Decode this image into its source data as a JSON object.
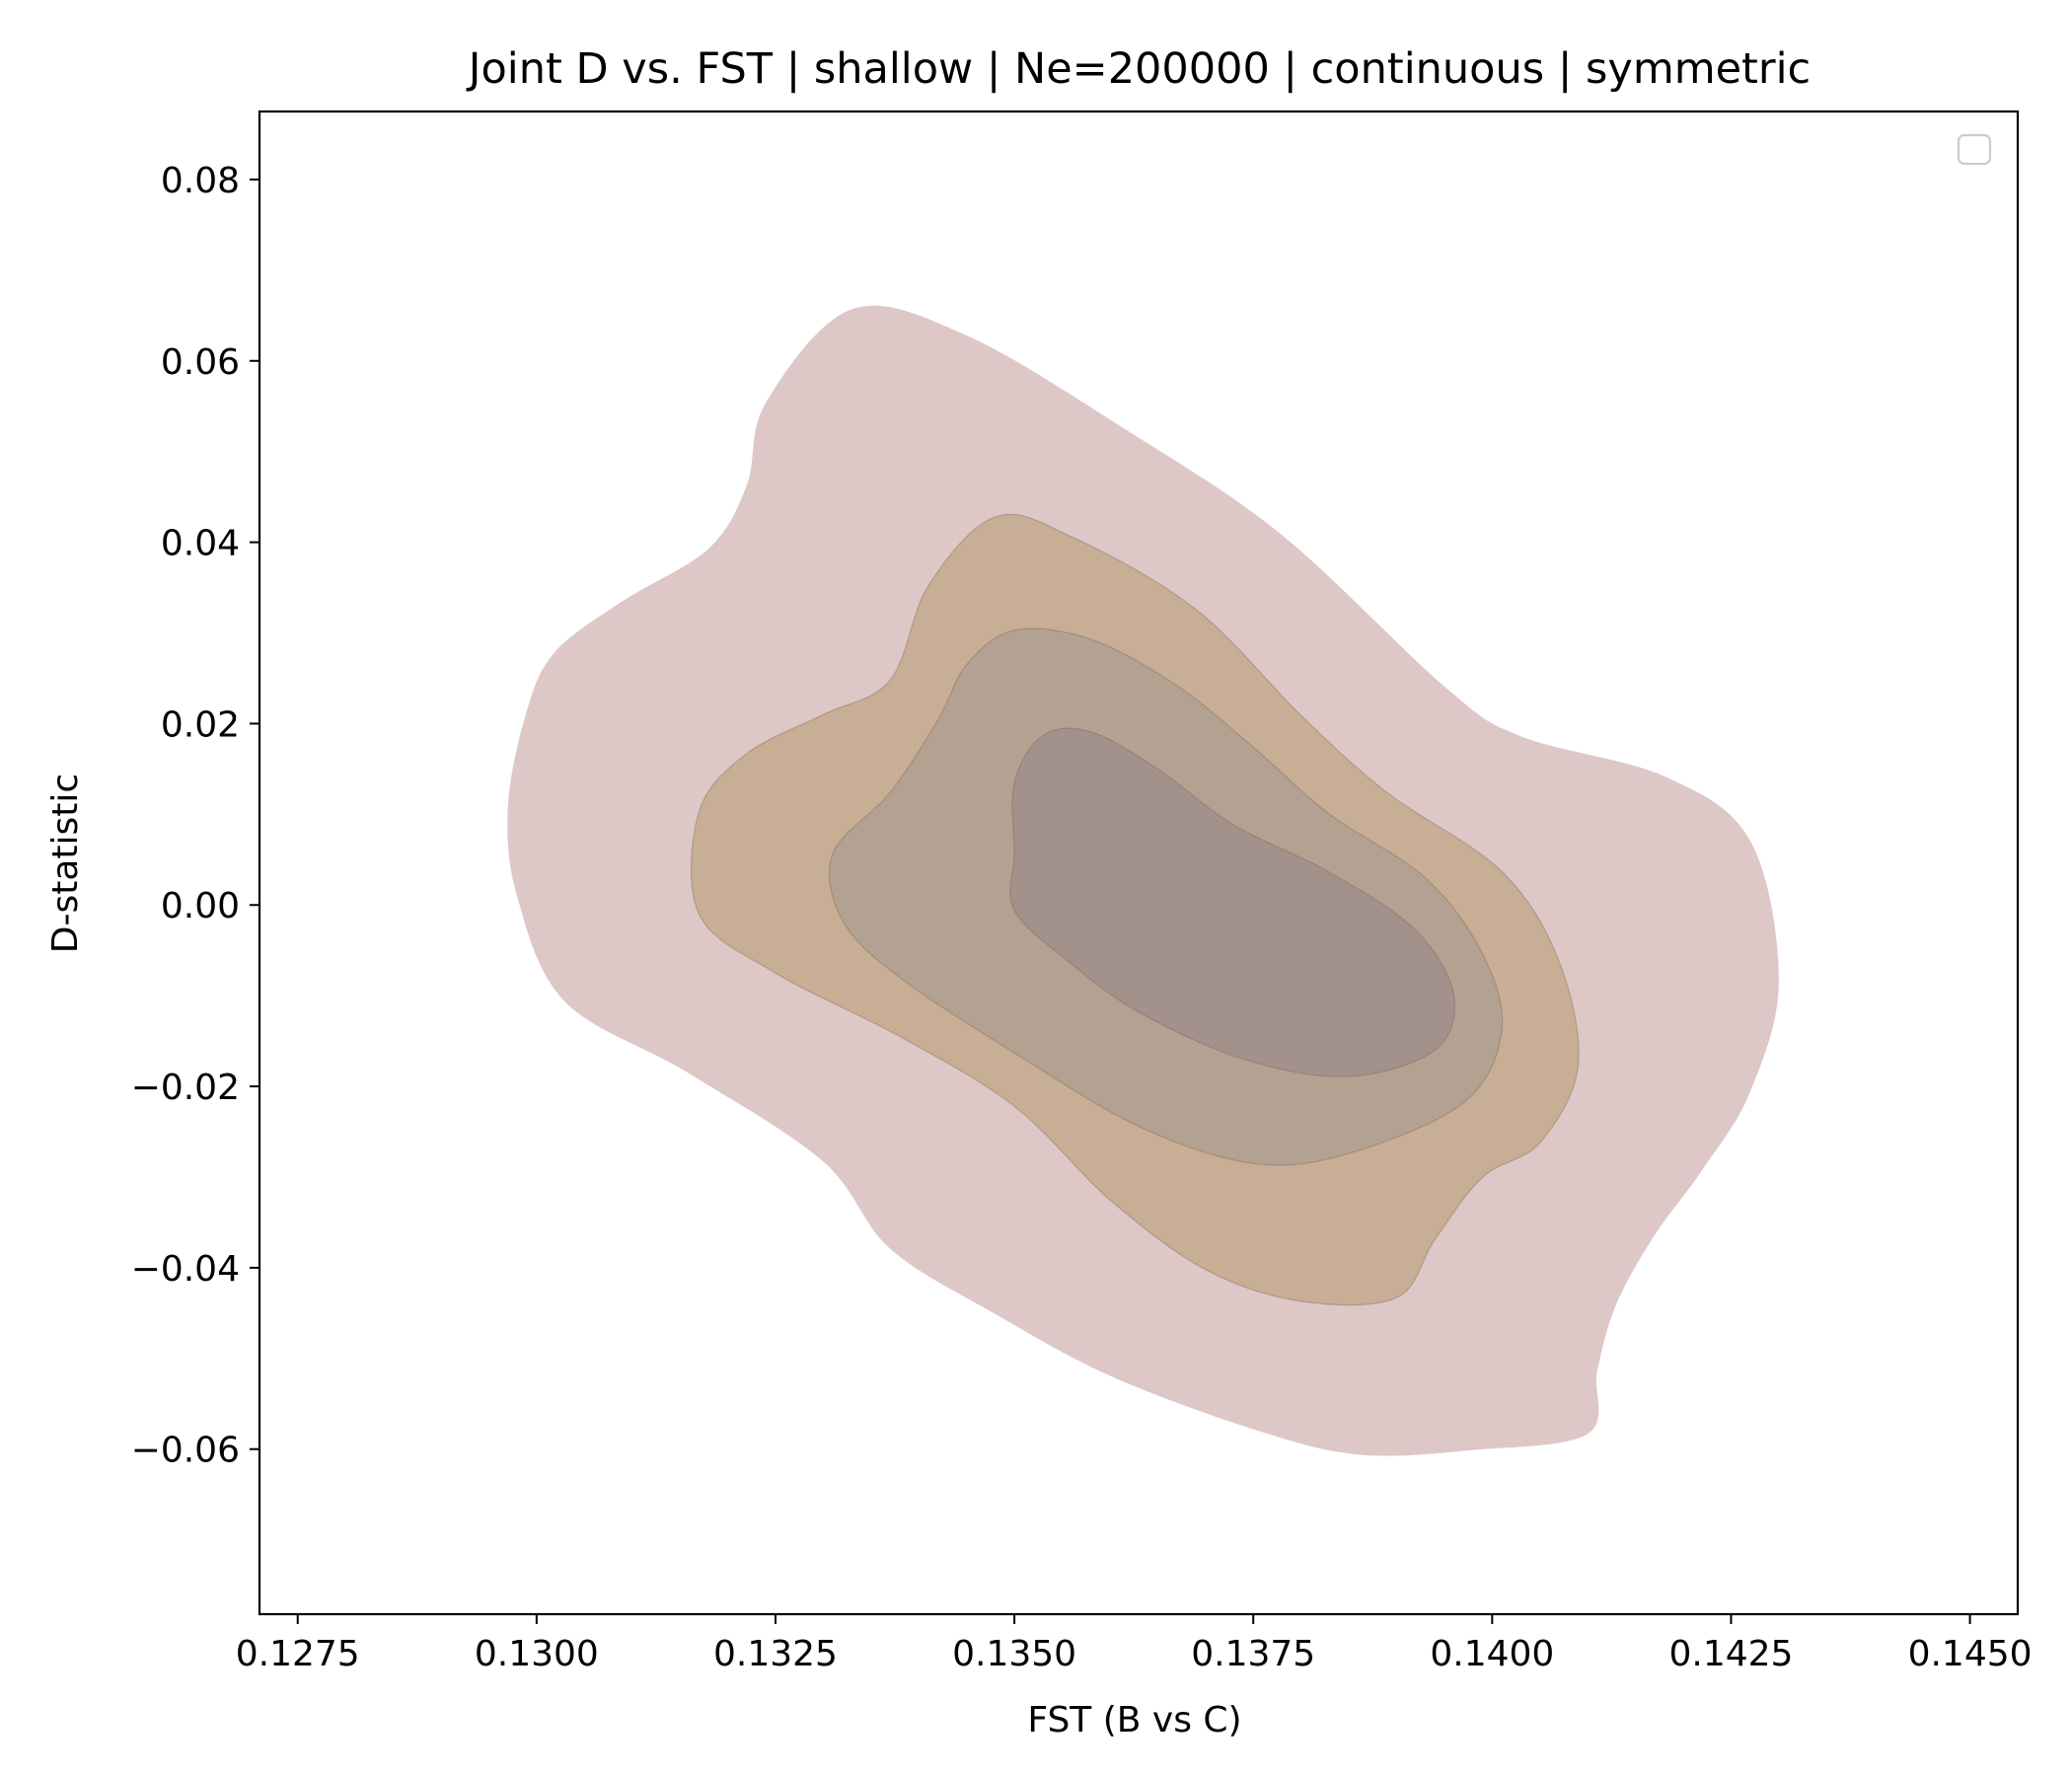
{
  "chart_data": {
    "type": "contour",
    "title": "Joint D vs. FST | shallow | Ne=200000 | continuous | symmetric",
    "xlabel": "FST (B vs C)",
    "ylabel": "D-statistic",
    "xlim": [
      0.1271,
      0.1455
    ],
    "ylim": [
      -0.0782,
      0.0875
    ],
    "x_ticks": [
      0.1275,
      0.13,
      0.1325,
      0.135,
      0.1375,
      0.14,
      0.1425,
      0.145
    ],
    "x_tick_labels": [
      "0.1275",
      "0.1300",
      "0.1325",
      "0.1350",
      "0.1375",
      "0.1400",
      "0.1425",
      "0.1450"
    ],
    "y_ticks": [
      -0.06,
      -0.04,
      -0.02,
      0.0,
      0.02,
      0.04,
      0.06,
      0.08
    ],
    "y_tick_labels": [
      "−0.06",
      "−0.04",
      "−0.02",
      "0.00",
      "0.02",
      "0.04",
      "0.06",
      "0.08"
    ],
    "legend": {
      "placement": "top-right",
      "entries": []
    },
    "grid": false,
    "levels": [
      {
        "fill": "#dec7c7",
        "points": [
          [
            0.1309,
            0.0335
          ],
          [
            0.1318,
            0.0393
          ],
          [
            0.1322,
            0.0463
          ],
          [
            0.1324,
            0.0554
          ],
          [
            0.1333,
            0.0657
          ],
          [
            0.1345,
            0.0628
          ],
          [
            0.1362,
            0.0522
          ],
          [
            0.1378,
            0.0408
          ],
          [
            0.1395,
            0.0241
          ],
          [
            0.1403,
            0.0186
          ],
          [
            0.1418,
            0.0142
          ],
          [
            0.1427,
            0.0071
          ],
          [
            0.143,
            -0.0083
          ],
          [
            0.1427,
            -0.0206
          ],
          [
            0.1422,
            -0.0292
          ],
          [
            0.1417,
            -0.0364
          ],
          [
            0.1413,
            -0.044
          ],
          [
            0.1411,
            -0.0513
          ],
          [
            0.141,
            -0.0583
          ],
          [
            0.1398,
            -0.0601
          ],
          [
            0.1386,
            -0.0606
          ],
          [
            0.1375,
            -0.0578
          ],
          [
            0.136,
            -0.0519
          ],
          [
            0.1348,
            -0.0451
          ],
          [
            0.1337,
            -0.0379
          ],
          [
            0.133,
            -0.0283
          ],
          [
            0.1316,
            -0.0186
          ],
          [
            0.1303,
            -0.0107
          ],
          [
            0.1298,
            0.0008
          ],
          [
            0.1297,
            0.0108
          ],
          [
            0.1299,
            0.0215
          ],
          [
            0.1302,
            0.028
          ]
        ]
      },
      {
        "fill": "#c7ae94",
        "points": [
          [
            0.1337,
            0.0248
          ],
          [
            0.1341,
            0.0352
          ],
          [
            0.1348,
            0.0428
          ],
          [
            0.1356,
            0.0406
          ],
          [
            0.1369,
            0.0326
          ],
          [
            0.138,
            0.0209
          ],
          [
            0.1389,
            0.0124
          ],
          [
            0.1401,
            0.0037
          ],
          [
            0.1407,
            -0.0062
          ],
          [
            0.1409,
            -0.0177
          ],
          [
            0.1405,
            -0.0262
          ],
          [
            0.1399,
            -0.03
          ],
          [
            0.1394,
            -0.0369
          ],
          [
            0.139,
            -0.0433
          ],
          [
            0.138,
            -0.0437
          ],
          [
            0.137,
            -0.0402
          ],
          [
            0.136,
            -0.0325
          ],
          [
            0.135,
            -0.0222
          ],
          [
            0.1338,
            -0.0145
          ],
          [
            0.1325,
            -0.0075
          ],
          [
            0.1317,
            -0.001
          ],
          [
            0.1317,
            0.0103
          ],
          [
            0.1322,
            0.0167
          ],
          [
            0.133,
            0.021
          ]
        ]
      },
      {
        "fill": "#b3a192",
        "points": [
          [
            0.1342,
            0.0204
          ],
          [
            0.1345,
            0.0265
          ],
          [
            0.135,
            0.0303
          ],
          [
            0.1358,
            0.0293
          ],
          [
            0.1367,
            0.0242
          ],
          [
            0.1375,
            0.0174
          ],
          [
            0.1383,
            0.01
          ],
          [
            0.1393,
            0.003
          ],
          [
            0.1399,
            -0.0054
          ],
          [
            0.1401,
            -0.0139
          ],
          [
            0.1397,
            -0.0218
          ],
          [
            0.1385,
            -0.0274
          ],
          [
            0.1375,
            -0.0285
          ],
          [
            0.1363,
            -0.0244
          ],
          [
            0.135,
            -0.0163
          ],
          [
            0.1338,
            -0.008
          ],
          [
            0.1332,
            -0.0017
          ],
          [
            0.1331,
            0.0057
          ],
          [
            0.1337,
            0.0124
          ]
        ]
      },
      {
        "fill": "#a3918b",
        "points": [
          [
            0.135,
            0.0135
          ],
          [
            0.1353,
            0.0187
          ],
          [
            0.1358,
            0.0191
          ],
          [
            0.1365,
            0.015
          ],
          [
            0.1373,
            0.0088
          ],
          [
            0.1383,
            0.0036
          ],
          [
            0.1392,
            -0.0028
          ],
          [
            0.1396,
            -0.01
          ],
          [
            0.1394,
            -0.016
          ],
          [
            0.1385,
            -0.0189
          ],
          [
            0.1374,
            -0.017
          ],
          [
            0.1363,
            -0.0118
          ],
          [
            0.1356,
            -0.0065
          ],
          [
            0.135,
            -0.0006
          ],
          [
            0.135,
            0.0057
          ]
        ]
      }
    ]
  },
  "colors": {
    "axis": "#000000",
    "legend_border": "#cccccc",
    "background": "#ffffff"
  }
}
